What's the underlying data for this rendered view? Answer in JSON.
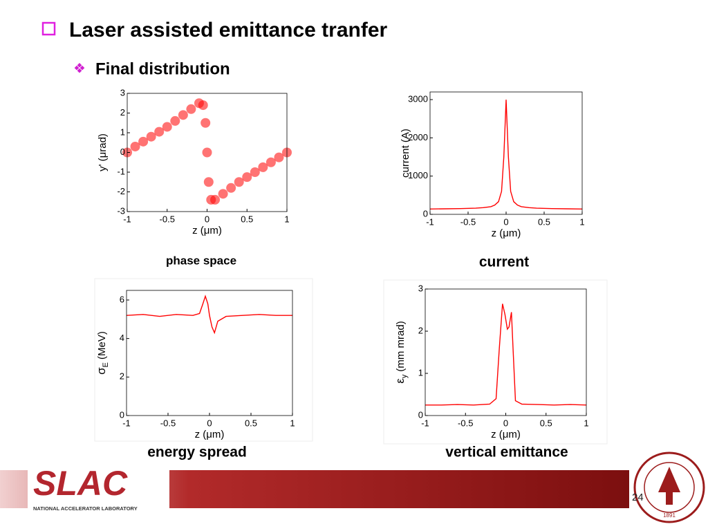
{
  "header": {
    "title": "Laser assisted emittance tranfer",
    "subtitle": "Final distribution"
  },
  "chart_data": [
    {
      "type": "scatter",
      "caption": "phase space",
      "x_label": "z (μm)",
      "y_label": "y' (μrad)",
      "color": "#ff0000",
      "x": [
        -1,
        -0.9,
        -0.8,
        -0.7,
        -0.6,
        -0.5,
        -0.4,
        -0.3,
        -0.2,
        -0.1,
        -0.05,
        -0.02,
        0,
        0.02,
        0.05,
        0.1,
        0.2,
        0.3,
        0.4,
        0.5,
        0.6,
        0.7,
        0.8,
        0.9,
        1
      ],
      "values": [
        0,
        0.3,
        0.55,
        0.8,
        1.05,
        1.3,
        1.6,
        1.9,
        2.2,
        2.5,
        2.4,
        1.5,
        0,
        -1.5,
        -2.4,
        -2.4,
        -2.1,
        -1.8,
        -1.5,
        -1.25,
        -1.0,
        -0.75,
        -0.5,
        -0.25,
        0
      ],
      "xlim": [
        -1,
        1
      ],
      "ylim": [
        -3,
        3
      ],
      "xticks": [
        -1,
        -0.5,
        0,
        0.5,
        1
      ],
      "yticks": [
        -3,
        -2,
        -1,
        0,
        1,
        2,
        3
      ]
    },
    {
      "type": "line",
      "caption": "current",
      "x_label": "z (μm)",
      "y_label": "current (A)",
      "color": "#ff0000",
      "x": [
        -1,
        -0.8,
        -0.6,
        -0.4,
        -0.3,
        -0.2,
        -0.15,
        -0.1,
        -0.06,
        -0.03,
        0,
        0.03,
        0.06,
        0.1,
        0.15,
        0.2,
        0.3,
        0.4,
        0.6,
        0.8,
        1
      ],
      "values": [
        140,
        145,
        150,
        160,
        175,
        200,
        240,
        330,
        600,
        1500,
        3000,
        1500,
        600,
        330,
        240,
        200,
        175,
        160,
        150,
        145,
        140
      ],
      "xlim": [
        -1,
        1
      ],
      "ylim": [
        0,
        3200
      ],
      "xticks": [
        -1,
        -0.5,
        0,
        0.5,
        1
      ],
      "yticks": [
        0,
        1000,
        2000,
        3000
      ]
    },
    {
      "type": "line",
      "caption": "energy spread",
      "x_label": "z (μm)",
      "y_label": {
        "symbol": "σ",
        "subscript": "E",
        "unit": "(MeV)"
      },
      "color": "#ff0000",
      "x": [
        -1,
        -0.8,
        -0.6,
        -0.4,
        -0.2,
        -0.12,
        -0.08,
        -0.05,
        -0.02,
        0,
        0.03,
        0.06,
        0.1,
        0.2,
        0.4,
        0.6,
        0.8,
        1
      ],
      "values": [
        5.2,
        5.25,
        5.15,
        5.25,
        5.2,
        5.3,
        5.8,
        6.2,
        5.8,
        5.2,
        4.6,
        4.3,
        4.9,
        5.15,
        5.2,
        5.25,
        5.2,
        5.2
      ],
      "xlim": [
        -1,
        1
      ],
      "ylim": [
        0,
        6.5
      ],
      "xticks": [
        -1,
        -0.5,
        0,
        0.5,
        1
      ],
      "yticks": [
        0,
        2,
        4,
        6
      ]
    },
    {
      "type": "line",
      "caption": "vertical emittance",
      "x_label": "z (μm)",
      "y_label": {
        "symbol": "ε",
        "subscript": "y",
        "unit": "(mm mrad)"
      },
      "color": "#ff0000",
      "x": [
        -1,
        -0.8,
        -0.6,
        -0.4,
        -0.2,
        -0.12,
        -0.08,
        -0.04,
        -0.01,
        0.02,
        0.04,
        0.07,
        0.09,
        0.12,
        0.2,
        0.4,
        0.6,
        0.8,
        1
      ],
      "values": [
        0.25,
        0.25,
        0.26,
        0.25,
        0.27,
        0.4,
        1.6,
        2.65,
        2.4,
        2.05,
        2.1,
        2.45,
        1.6,
        0.35,
        0.27,
        0.26,
        0.25,
        0.26,
        0.25
      ],
      "xlim": [
        -1,
        1
      ],
      "ylim": [
        0,
        3
      ],
      "xticks": [
        -1,
        -0.5,
        0,
        0.5,
        1
      ],
      "yticks": [
        0,
        1,
        2,
        3
      ]
    }
  ],
  "footer": {
    "logo": "SLAC",
    "lab": "NATIONAL ACCELERATOR LABORATORY",
    "page": "24",
    "seal_year": "1891"
  }
}
